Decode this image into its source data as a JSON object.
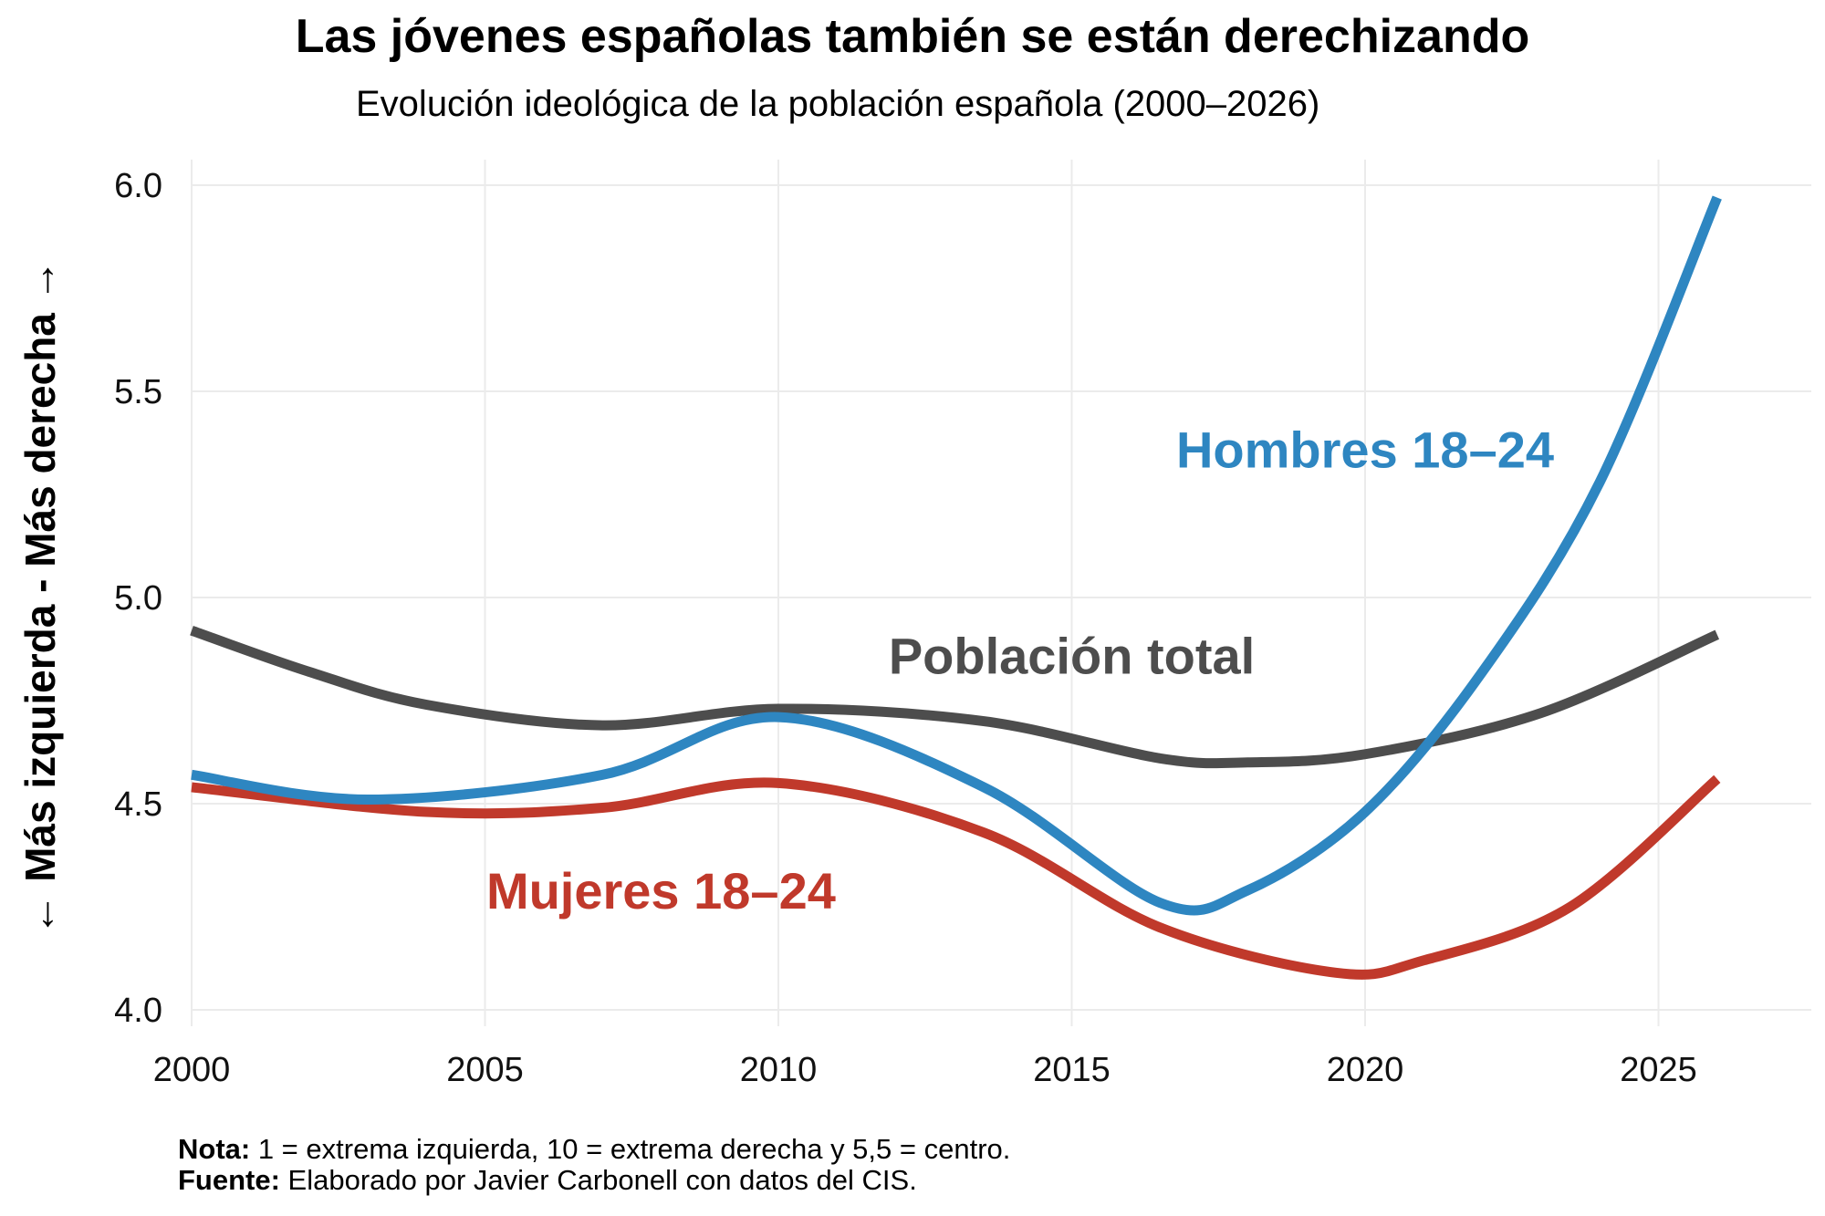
{
  "chart_data": {
    "type": "line",
    "title": "Las jóvenes españolas también se están derechizando",
    "subtitle": "Evolución ideológica de la población española (2000–2026)",
    "xlabel": "",
    "ylabel": "← Más izquierda - Más derecha →",
    "xlim": [
      2000,
      2027.5
    ],
    "ylim": [
      4.0,
      6.0
    ],
    "x_ticks": [
      2000,
      2005,
      2010,
      2015,
      2020,
      2025
    ],
    "x_tick_labels": [
      "2000",
      "2005",
      "2010",
      "2015",
      "2020",
      "2025"
    ],
    "y_ticks": [
      4.0,
      4.5,
      5.0,
      5.5,
      6.0
    ],
    "y_tick_labels": [
      "4.0",
      "4.5",
      "5.0",
      "5.5",
      "6.0"
    ],
    "grid": true,
    "legend": "direct labels",
    "series": [
      {
        "name": "Población total",
        "color": "#4D4D4D",
        "x": [
          2000,
          2002,
          2004,
          2007,
          2010,
          2013.5,
          2016.5,
          2018,
          2020,
          2023,
          2026
        ],
        "values": [
          4.92,
          4.82,
          4.74,
          4.69,
          4.73,
          4.7,
          4.61,
          4.6,
          4.62,
          4.72,
          4.91
        ]
      },
      {
        "name": "Hombres 18–24",
        "color": "#2E86C1",
        "x": [
          2000,
          2003,
          2007,
          2010,
          2013.5,
          2016.5,
          2018,
          2020,
          2022,
          2024,
          2026
        ],
        "values": [
          4.57,
          4.51,
          4.57,
          4.71,
          4.54,
          4.26,
          4.29,
          4.48,
          4.82,
          5.28,
          5.97
        ]
      },
      {
        "name": "Mujeres 18–24",
        "color": "#C0392B",
        "x": [
          2000,
          2004,
          2007,
          2010,
          2013.5,
          2016.5,
          2019.5,
          2021,
          2023.5,
          2026
        ],
        "values": [
          4.54,
          4.48,
          4.49,
          4.55,
          4.43,
          4.2,
          4.09,
          4.12,
          4.25,
          4.56
        ]
      }
    ],
    "annotations": [
      {
        "text": "Hombres 18–24",
        "series": "Hombres 18–24",
        "x": 2020,
        "y": 5.36
      },
      {
        "text": "Población total",
        "series": "Población total",
        "x": 2015,
        "y": 4.86
      },
      {
        "text": "Mujeres 18–24",
        "series": "Mujeres 18–24",
        "x": 2008,
        "y": 4.29
      }
    ]
  },
  "notes": {
    "nota_label": "Nota:",
    "nota_text": " 1 = extrema izquierda, 10 = extrema derecha y 5,5 = centro.",
    "fuente_label": "Fuente:",
    "fuente_text": " Elaborado por Javier Carbonell con datos del CIS."
  }
}
